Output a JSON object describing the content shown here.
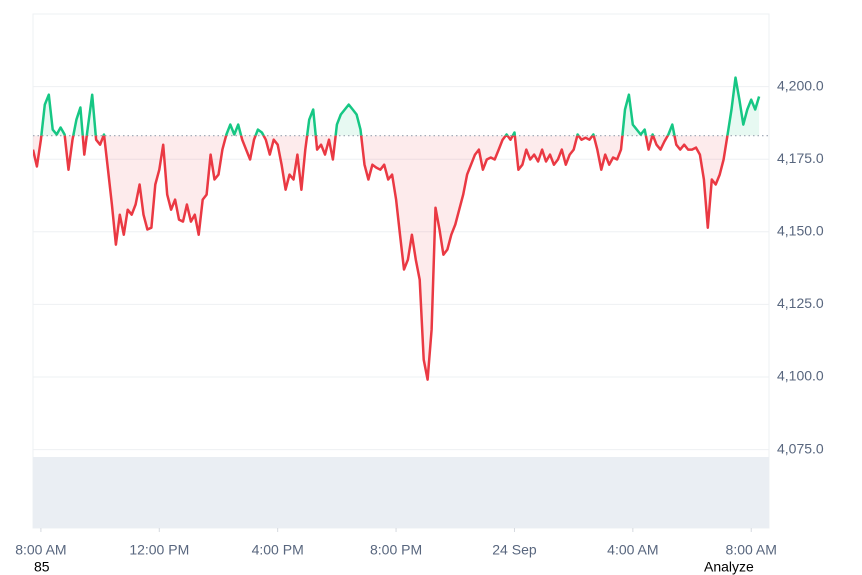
{
  "chart_data": {
    "type": "line",
    "x": [
      -16,
      -8,
      0,
      8,
      16,
      24,
      32,
      40,
      48,
      56,
      64,
      72,
      80,
      88,
      96,
      104,
      112,
      120,
      128,
      136,
      144,
      152,
      160,
      168,
      176,
      184,
      192,
      200,
      208,
      216,
      224,
      232,
      240,
      248,
      256,
      264,
      272,
      280,
      288,
      296,
      304,
      312,
      320,
      328,
      336,
      344,
      352,
      360,
      368,
      376,
      384,
      392,
      400,
      408,
      416,
      424,
      432,
      440,
      448,
      456,
      464,
      472,
      480,
      488,
      496,
      504,
      512,
      520,
      528,
      536,
      544,
      552,
      560,
      568,
      576,
      584,
      592,
      600,
      608,
      616,
      624,
      632,
      640,
      648,
      656,
      664,
      672,
      680,
      688,
      696,
      704,
      712,
      720,
      728,
      736,
      744,
      752,
      760,
      768,
      776,
      784,
      792,
      800,
      808,
      816,
      824,
      832,
      840,
      848,
      856,
      864,
      872,
      880,
      888,
      896,
      904,
      912,
      920,
      928,
      936,
      944,
      952,
      960,
      968,
      976,
      984,
      992,
      1000,
      1008,
      1016,
      1024,
      1032,
      1040,
      1048,
      1056,
      1064,
      1072,
      1080,
      1088,
      1096,
      1104,
      1112,
      1120,
      1128,
      1136,
      1144,
      1152,
      1160,
      1168,
      1176,
      1184,
      1192,
      1200,
      1208,
      1216,
      1224,
      1232,
      1240,
      1248,
      1256,
      1264,
      1272,
      1280,
      1288,
      1296,
      1304,
      1312,
      1320,
      1328,
      1336,
      1344,
      1352,
      1360,
      1368,
      1376,
      1384,
      1392,
      1400,
      1408,
      1416,
      1424,
      1432,
      1440,
      1448,
      1456
    ],
    "series": [
      {
        "values": [
          4178.3,
          4172.5,
          4181.7,
          4193.8,
          4197.2,
          4185.2,
          4183.5,
          4185.9,
          4183.5,
          4171.4,
          4181.7,
          4188.6,
          4192.8,
          4176.6,
          4186.9,
          4197.2,
          4181.7,
          4180,
          4183.5,
          4171.4,
          4159.4,
          4145.6,
          4155.9,
          4149,
          4157.6,
          4155.9,
          4159.4,
          4166.3,
          4155.9,
          4150.8,
          4151.4,
          4166.3,
          4171.4,
          4180,
          4162.8,
          4157.6,
          4161.1,
          4154.2,
          4153.5,
          4159.4,
          4153.5,
          4155.9,
          4149,
          4161.1,
          4162.8,
          4176.6,
          4168,
          4169.7,
          4178.3,
          4183.5,
          4186.9,
          4183.5,
          4186.9,
          4181.7,
          4178.3,
          4174.9,
          4181.7,
          4185.2,
          4184.2,
          4181.7,
          4176.6,
          4181.7,
          4180,
          4173.1,
          4164.5,
          4169.7,
          4168,
          4176.6,
          4164.5,
          4178.3,
          4188.6,
          4192.1,
          4178.3,
          4180,
          4176.6,
          4181.7,
          4174.9,
          4186.9,
          4190.4,
          4192.1,
          4193.8,
          4192.1,
          4190.4,
          4185.2,
          4173.1,
          4168,
          4173.1,
          4172.1,
          4171.4,
          4173.1,
          4168,
          4169.7,
          4161.1,
          4149,
          4137,
          4140.4,
          4149,
          4140.4,
          4133.5,
          4106,
          4099.1,
          4116.3,
          4158.3,
          4150.8,
          4142.1,
          4143.9,
          4149,
          4152.5,
          4157.6,
          4162.8,
          4169.7,
          4173.1,
          4176.6,
          4178.3,
          4171.4,
          4174.9,
          4175.6,
          4174.9,
          4178.3,
          4181.7,
          4183.5,
          4181.7,
          4184.2,
          4171.4,
          4173.1,
          4178.3,
          4174.9,
          4176.6,
          4174.2,
          4178.3,
          4174.2,
          4176.6,
          4173.1,
          4174.9,
          4178.3,
          4173.1,
          4176.6,
          4178.3,
          4183.5,
          4181.7,
          4182.4,
          4181.7,
          4183.5,
          4178.3,
          4171.4,
          4176.6,
          4173.1,
          4175.6,
          4174.9,
          4178.3,
          4192.1,
          4197.2,
          4186.9,
          4185.2,
          4183.5,
          4185.2,
          4178.3,
          4183.5,
          4180,
          4178.3,
          4181.1,
          4183.5,
          4186.9,
          4180,
          4178.3,
          4180,
          4178.3,
          4178.3,
          4179,
          4176.6,
          4168,
          4151.4,
          4168,
          4166.3,
          4169.7,
          4174.9,
          4183.5,
          4192.1,
          4203.1,
          4195.5,
          4186.9,
          4192.1,
          4195.5,
          4192.1,
          4196.6
        ]
      }
    ],
    "baseline": 4183.1,
    "up_color": "#16c784",
    "down_color": "#ea3943",
    "xlim": [
      -16,
      1476
    ],
    "xticks": [
      {
        "value": 0,
        "label": "8:00 AM"
      },
      {
        "value": 240,
        "label": "12:00 PM"
      },
      {
        "value": 480,
        "label": "4:00 PM"
      },
      {
        "value": 720,
        "label": "8:00 PM"
      },
      {
        "value": 960,
        "label": "24 Sep"
      },
      {
        "value": 1200,
        "label": "4:00 AM"
      },
      {
        "value": 1440,
        "label": "8:00 AM"
      }
    ],
    "ylim": [
      4048,
      4225
    ],
    "yticks": [
      {
        "value": 4075,
        "label": "4,075.0"
      },
      {
        "value": 4100,
        "label": "4,100.0"
      },
      {
        "value": 4125,
        "label": "4,125.0"
      },
      {
        "value": 4150,
        "label": "4,150.0"
      },
      {
        "value": 4175,
        "label": "4,175.0"
      },
      {
        "value": 4200,
        "label": "4,200.0"
      }
    ],
    "grid": true
  },
  "footer": {
    "left": "85",
    "right": "Analyze"
  }
}
